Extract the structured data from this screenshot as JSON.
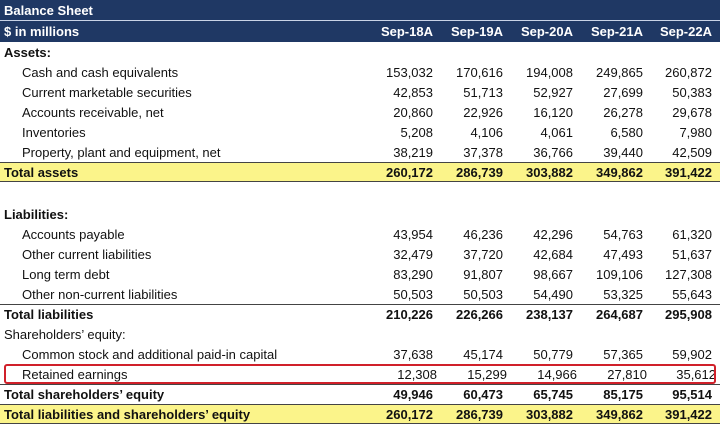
{
  "title": "Balance Sheet",
  "units": "$ in millions",
  "columns": [
    "Sep-18A",
    "Sep-19A",
    "Sep-20A",
    "Sep-21A",
    "Sep-22A"
  ],
  "assets_header": "Assets:",
  "assets": [
    {
      "label": "Cash and cash equivalents",
      "values": [
        "153,032",
        "170,616",
        "194,008",
        "249,865",
        "260,872"
      ]
    },
    {
      "label": "Current marketable securities",
      "values": [
        "42,853",
        "51,713",
        "52,927",
        "27,699",
        "50,383"
      ]
    },
    {
      "label": "Accounts receivable, net",
      "values": [
        "20,860",
        "22,926",
        "16,120",
        "26,278",
        "29,678"
      ]
    },
    {
      "label": "Inventories",
      "values": [
        "5,208",
        "4,106",
        "4,061",
        "6,580",
        "7,980"
      ]
    },
    {
      "label": "Property, plant and equipment, net",
      "values": [
        "38,219",
        "37,378",
        "36,766",
        "39,440",
        "42,509"
      ]
    }
  ],
  "total_assets": {
    "label": "Total assets",
    "values": [
      "260,172",
      "286,739",
      "303,882",
      "349,862",
      "391,422"
    ]
  },
  "liabilities_header": "Liabilities:",
  "liabilities": [
    {
      "label": "Accounts payable",
      "values": [
        "43,954",
        "46,236",
        "42,296",
        "54,763",
        "61,320"
      ]
    },
    {
      "label": "Other current liabilities",
      "values": [
        "32,479",
        "37,720",
        "42,684",
        "47,493",
        "51,637"
      ]
    },
    {
      "label": "Long term debt",
      "values": [
        "83,290",
        "91,807",
        "98,667",
        "109,106",
        "127,308"
      ]
    },
    {
      "label": "Other non-current liabilities",
      "values": [
        "50,503",
        "50,503",
        "54,490",
        "53,325",
        "55,643"
      ]
    }
  ],
  "total_liabilities": {
    "label": "Total liabilities",
    "values": [
      "210,226",
      "226,266",
      "238,137",
      "264,687",
      "295,908"
    ]
  },
  "equity_header": "Shareholders’ equity:",
  "common_stock": {
    "label": "Common stock and additional paid-in capital",
    "values": [
      "37,638",
      "45,174",
      "50,779",
      "57,365",
      "59,902"
    ]
  },
  "retained_earnings": {
    "label": "Retained earnings",
    "values": [
      "12,308",
      "15,299",
      "14,966",
      "27,810",
      "35,612"
    ]
  },
  "total_equity": {
    "label": "Total shareholders’ equity",
    "values": [
      "49,946",
      "60,473",
      "65,745",
      "85,175",
      "95,514"
    ]
  },
  "total_le": {
    "label": "Total liabilities and shareholders’ equity",
    "values": [
      "260,172",
      "286,739",
      "303,882",
      "349,862",
      "391,422"
    ]
  },
  "colors": {
    "header": "#1f3864",
    "total_fill": "#fbf48a",
    "highlight": "#d0202a"
  }
}
